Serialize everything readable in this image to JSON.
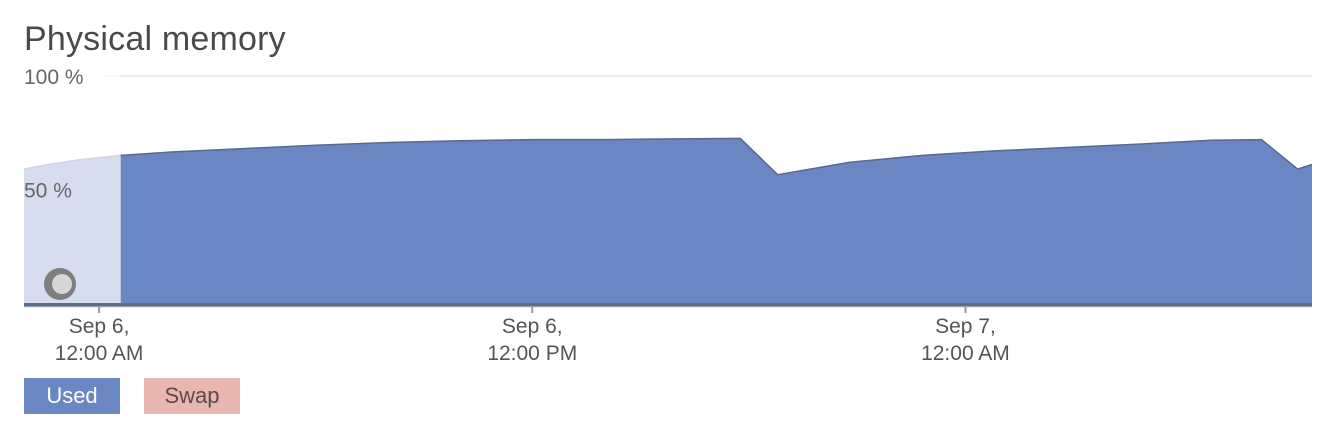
{
  "title": "Physical memory",
  "chart_data": {
    "type": "area",
    "ylim": [
      0,
      100
    ],
    "y_unit": "%",
    "y_tick_labels": [
      "100 %",
      "50 %"
    ],
    "y_tick_values": [
      100,
      50
    ],
    "x_range_hours": [
      -5.2,
      84
    ],
    "x_ticks": [
      {
        "hour": 0,
        "line1": "Sep 6,",
        "line2": "12:00 AM"
      },
      {
        "hour": 30,
        "line1": "Sep 6,",
        "line2": "12:00 PM"
      },
      {
        "hour": 60,
        "line1": "Sep 7,",
        "line2": "12:00 AM"
      }
    ],
    "faded_until_hour": 1.5,
    "series": [
      {
        "name": "Used",
        "color": "#6a87c3",
        "points": [
          [
            -5.2,
            59
          ],
          [
            -3.5,
            61
          ],
          [
            -1.5,
            63
          ],
          [
            1.5,
            65
          ],
          [
            5,
            66.5
          ],
          [
            10,
            68
          ],
          [
            15,
            69.5
          ],
          [
            20,
            70.7
          ],
          [
            25,
            71.5
          ],
          [
            30,
            72
          ],
          [
            35,
            72
          ],
          [
            40,
            72.3
          ],
          [
            44.4,
            72.5
          ],
          [
            47,
            56.5
          ],
          [
            52,
            62
          ],
          [
            57,
            65
          ],
          [
            62,
            67
          ],
          [
            67,
            68.5
          ],
          [
            72,
            70
          ],
          [
            77,
            71.7
          ],
          [
            80.5,
            72
          ],
          [
            83,
            59
          ],
          [
            84,
            61
          ]
        ]
      },
      {
        "name": "Swap",
        "color": "#e9b7b0",
        "points": []
      }
    ]
  },
  "legend": {
    "used_label": "Used",
    "swap_label": "Swap"
  }
}
